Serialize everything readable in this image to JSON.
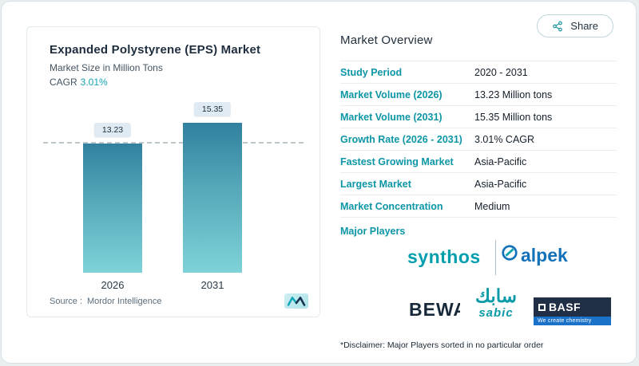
{
  "colors": {
    "accent_teal": "#14a3b2",
    "title_navy": "#1d2d3e",
    "bar_gradient_top": "#31809f",
    "bar_gradient_bottom": "#7fd2d8",
    "table_label_teal": "#0d96a6",
    "alpek_blue": "#1472b8",
    "basf_navy": "#202f45",
    "basf_blue": "#1b72c9"
  },
  "share": {
    "label": "Share"
  },
  "card": {
    "title": "Expanded Polystyrene (EPS) Market",
    "subtitle": "Market Size in Million Tons",
    "cagr_label": "CAGR",
    "cagr_value": "3.01%",
    "source_label": "Source :",
    "source_value": "Mordor Intelligence"
  },
  "chart_data": {
    "type": "bar",
    "title": "Expanded Polystyrene (EPS) Market",
    "ylabel": "Market Size in Million Tons",
    "categories": [
      "2026",
      "2031"
    ],
    "values": [
      13.23,
      15.35
    ],
    "bar_labels": [
      "13.23",
      "15.35"
    ],
    "ylim": [
      0,
      16
    ],
    "reference_line": 13.23,
    "grid": false,
    "legend": "none",
    "cagr": "3.01%"
  },
  "overview": {
    "title": "Market Overview",
    "rows": [
      {
        "label": "Study Period",
        "value": "2020 - 2031"
      },
      {
        "label": "Market Volume (2026)",
        "value": "13.23 Million tons"
      },
      {
        "label": "Market Volume (2031)",
        "value": "15.35 Million tons"
      },
      {
        "label": "Growth Rate (2026 - 2031)",
        "value": "3.01% CAGR"
      },
      {
        "label": "Fastest Growing Market",
        "value": "Asia-Pacific"
      },
      {
        "label": "Largest Market",
        "value": "Asia-Pacific"
      },
      {
        "label": "Market Concentration",
        "value": "Medium"
      }
    ],
    "major_players_label": "Major Players",
    "disclaimer": "*Disclaimer: Major Players sorted in no particular order"
  },
  "players": {
    "synthos": "synthos",
    "alpek": "alpek",
    "bewi": "BEWA",
    "sabic_arabic": "سابك",
    "sabic_latin": "sabic",
    "basf": "BASF",
    "basf_tagline": "We create chemistry"
  }
}
